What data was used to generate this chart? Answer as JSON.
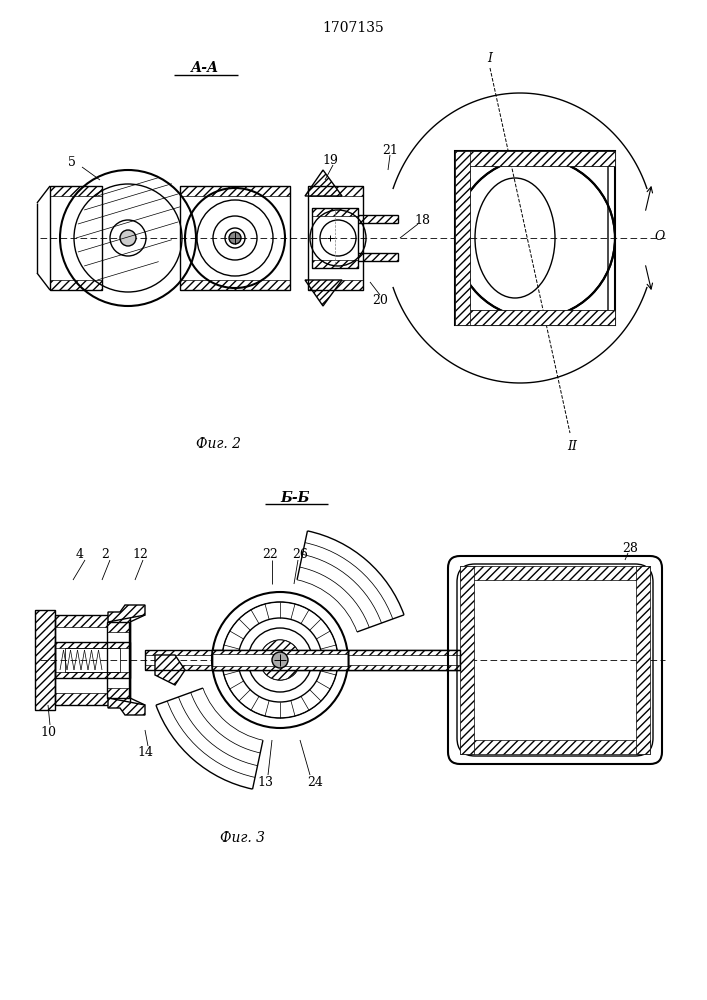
{
  "patent_number": "1707135",
  "fig2_label": "А-А",
  "fig2_caption": "Фиг. 2",
  "fig3_label": "Б-Б",
  "fig3_caption": "Фиг. 3",
  "background_color": "#ffffff",
  "line_color": "#000000"
}
